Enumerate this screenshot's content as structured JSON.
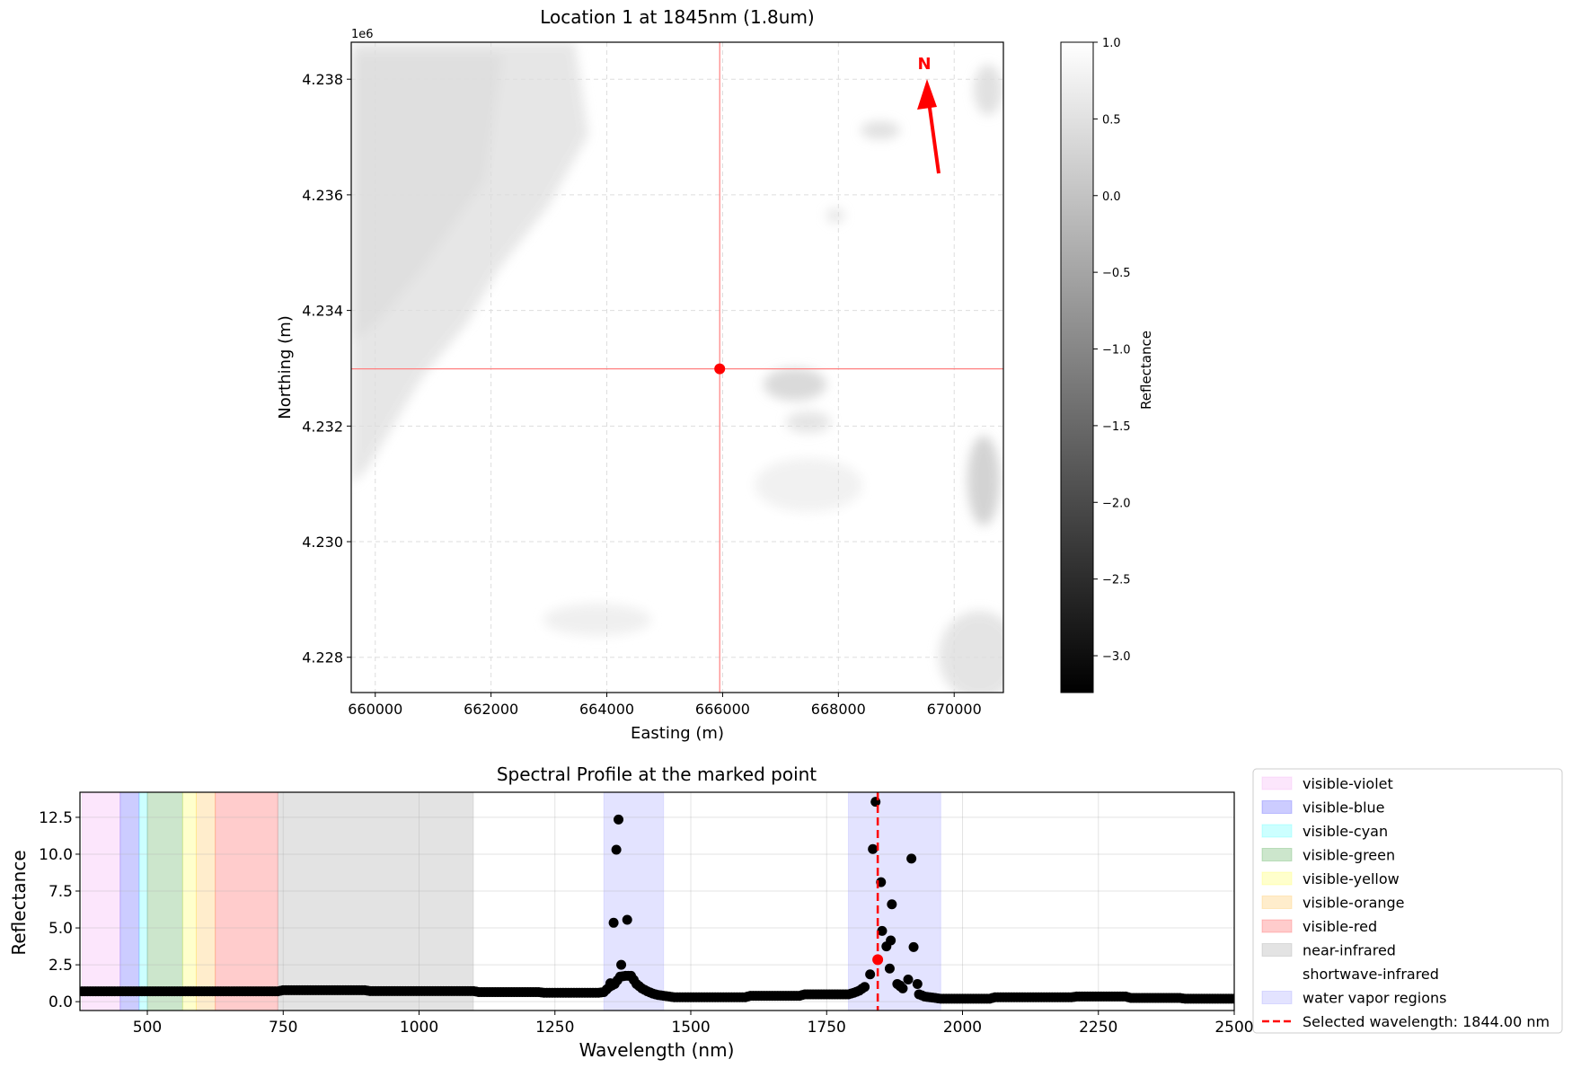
{
  "chart_data": [
    {
      "type": "heatmap",
      "title": "Location 1 at 1845nm (1.8um)",
      "xlabel": "Easting (m)",
      "ylabel": "Northing (m)",
      "y_offset_label": "1e6",
      "xlim": [
        659585,
        670850
      ],
      "ylim": [
        4227390,
        4238640
      ],
      "x_ticks": [
        660000,
        662000,
        664000,
        666000,
        668000,
        670000
      ],
      "x_tick_labels": [
        "660000",
        "662000",
        "664000",
        "666000",
        "668000",
        "670000"
      ],
      "y_ticks": [
        4228000,
        4230000,
        4232000,
        4234000,
        4236000,
        4238000
      ],
      "y_tick_labels": [
        "4.228",
        "4.230",
        "4.232",
        "4.234",
        "4.236",
        "4.238"
      ],
      "grid": true,
      "colormap": "gray",
      "marked_point": {
        "easting": 665950,
        "northing": 4232990,
        "color": "#ff0000"
      },
      "north_arrow": {
        "label": "N",
        "color": "#ff0000"
      },
      "colorbar": {
        "label": "Reflectance",
        "range": [
          -3.24,
          1.0
        ],
        "ticks": [
          1.0,
          0.5,
          0.0,
          -0.5,
          -1.0,
          -1.5,
          -2.0,
          -2.5,
          -3.0
        ],
        "tick_labels": [
          "1.0",
          "0.5",
          "0.0",
          "−0.5",
          "−1.0",
          "−1.5",
          "−2.0",
          "−2.5",
          "−3.0"
        ]
      }
    },
    {
      "type": "scatter",
      "title": "Spectral Profile at the marked point",
      "xlabel": "Wavelength (nm)",
      "ylabel": "Reflectance",
      "xlim": [
        376,
        2500
      ],
      "ylim": [
        -0.6,
        14.2
      ],
      "x_ticks": [
        500,
        750,
        1000,
        1250,
        1500,
        1750,
        2000,
        2250,
        2500
      ],
      "y_ticks": [
        0.0,
        2.5,
        5.0,
        7.5,
        10.0,
        12.5
      ],
      "y_tick_labels": [
        "0.0",
        "2.5",
        "5.0",
        "7.5",
        "10.0",
        "12.5"
      ],
      "grid": true,
      "legend_placement": "outside-right",
      "regions": [
        {
          "name": "visible-violet",
          "range": [
            380,
            450
          ],
          "color": "#ee82ee",
          "opacity": 0.2
        },
        {
          "name": "visible-blue",
          "range": [
            450,
            485
          ],
          "color": "#0000ff",
          "opacity": 0.2
        },
        {
          "name": "visible-cyan",
          "range": [
            485,
            500
          ],
          "color": "#00ffff",
          "opacity": 0.2
        },
        {
          "name": "visible-green",
          "range": [
            500,
            565
          ],
          "color": "#008000",
          "opacity": 0.2
        },
        {
          "name": "visible-yellow",
          "range": [
            565,
            590
          ],
          "color": "#ffff00",
          "opacity": 0.2
        },
        {
          "name": "visible-orange",
          "range": [
            590,
            625
          ],
          "color": "#ffa500",
          "opacity": 0.2
        },
        {
          "name": "visible-red",
          "range": [
            625,
            740
          ],
          "color": "#ff0000",
          "opacity": 0.2
        },
        {
          "name": "near-infrared",
          "range": [
            740,
            1100
          ],
          "color": "#808080",
          "opacity": 0.22
        },
        {
          "name": "shortwave-infrared",
          "range": [
            1100,
            2500
          ],
          "color": "#ffffff",
          "opacity": 0
        },
        {
          "name": "water vapor regions",
          "ranges": [
            [
              1340,
              1450
            ],
            [
              1790,
              1960
            ]
          ],
          "color": "#0000ff",
          "opacity": 0.11
        }
      ],
      "series": {
        "color": "#000000",
        "x_start_nm": 380,
        "x_step_nm": 10,
        "values": [
          0.7,
          0.7,
          0.7,
          0.7,
          0.7,
          0.7,
          0.7,
          0.7,
          0.7,
          0.7,
          0.7,
          0.7,
          0.7,
          0.7,
          0.7,
          0.7,
          0.7,
          0.7,
          0.7,
          0.7,
          0.7,
          0.7,
          0.7,
          0.7,
          0.7,
          0.7,
          0.7,
          0.7,
          0.7,
          0.7,
          0.7,
          0.7,
          0.7,
          0.7,
          0.7,
          0.7,
          0.7,
          0.78,
          0.78,
          0.78,
          0.78,
          0.78,
          0.78,
          0.78,
          0.78,
          0.78,
          0.78,
          0.78,
          0.78,
          0.78,
          0.78,
          0.78,
          0.78,
          0.72,
          0.72,
          0.72,
          0.72,
          0.72,
          0.72,
          0.72,
          0.72,
          0.72,
          0.72,
          0.72,
          0.72,
          0.72,
          0.72,
          0.72,
          0.72,
          0.72,
          0.72,
          0.72,
          0.72,
          0.65,
          0.65,
          0.65,
          0.65,
          0.65,
          0.65,
          0.65,
          0.65,
          0.65,
          0.65,
          0.65,
          0.65,
          0.6,
          0.6,
          0.6,
          0.6,
          0.6,
          0.6,
          0.6,
          0.6,
          0.6,
          0.6,
          0.6,
          0.65,
          1.0,
          1.2,
          1.7,
          1.75,
          1.75,
          1.2,
          0.9,
          0.7,
          0.55,
          0.45,
          0.4,
          0.35,
          0.3,
          0.3,
          0.3,
          0.3,
          0.3,
          0.3,
          0.3,
          0.3,
          0.3,
          0.3,
          0.3,
          0.3,
          0.3,
          0.3,
          0.4,
          0.4,
          0.4,
          0.4,
          0.4,
          0.4,
          0.4,
          0.4,
          0.4,
          0.4,
          0.5,
          0.5,
          0.5,
          0.5,
          0.5,
          0.5,
          0.5,
          0.5,
          0.5,
          0.6,
          0.75,
          1.0,
          1.85,
          13.55,
          8.1,
          3.75,
          6.6,
          1.2,
          0.9,
          1.5,
          3.7,
          0.5,
          0.35,
          0.3,
          0.25,
          0.2,
          0.2,
          0.2,
          0.2,
          0.2,
          0.2,
          0.2,
          0.2,
          0.2,
          0.2,
          0.3,
          0.3,
          0.3,
          0.3,
          0.3,
          0.3,
          0.3,
          0.3,
          0.3,
          0.3,
          0.3,
          0.3,
          0.3,
          0.3,
          0.3,
          0.35,
          0.35,
          0.35,
          0.35,
          0.35,
          0.35,
          0.35,
          0.35,
          0.35,
          0.35,
          0.25,
          0.25,
          0.25,
          0.25,
          0.25,
          0.25,
          0.25,
          0.25,
          0.25,
          0.25,
          0.2,
          0.2,
          0.2,
          0.2,
          0.2,
          0.2,
          0.2,
          0.2,
          0.2,
          0.2
        ],
        "extra_points": [
          [
            1352,
            1.25
          ],
          [
            1358,
            5.35
          ],
          [
            1363,
            10.3
          ],
          [
            1367,
            12.35
          ],
          [
            1372,
            2.5
          ],
          [
            1383,
            5.55
          ],
          [
            1835,
            10.35
          ],
          [
            1852,
            4.8
          ],
          [
            1866,
            2.25
          ],
          [
            1868,
            4.15
          ],
          [
            1885,
            1.1
          ],
          [
            1906,
            9.7
          ],
          [
            1917,
            1.2
          ]
        ]
      },
      "selected": {
        "wavelength": 1844,
        "reflectance": 2.85,
        "color": "#ff0000",
        "label": "Selected wavelength: 1844.00 nm"
      },
      "legend": [
        "visible-violet",
        "visible-blue",
        "visible-cyan",
        "visible-green",
        "visible-yellow",
        "visible-orange",
        "visible-red",
        "near-infrared",
        "shortwave-infrared",
        "water vapor regions",
        "Selected wavelength: 1844.00 nm"
      ]
    }
  ]
}
